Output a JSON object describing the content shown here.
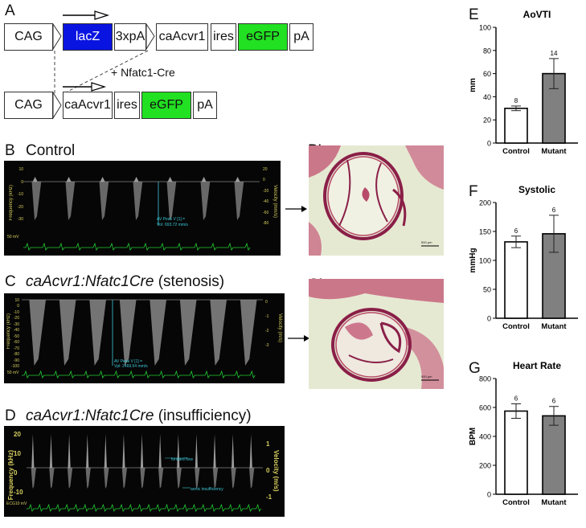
{
  "panels": {
    "A": "A",
    "B": "B",
    "C": "C",
    "D": "D",
    "B_prime": "B’",
    "C_prime": "C’",
    "E": "E",
    "F": "F",
    "G": "G"
  },
  "construct": {
    "top": [
      "CAG",
      "lacZ",
      "3xpA",
      "caAcvr1",
      "ires",
      "eGFP",
      "pA"
    ],
    "bottom": [
      "CAG",
      "caAcvr1",
      "ires",
      "eGFP",
      "pA"
    ],
    "cre_label": "+ Nfatc1-Cre",
    "colors": {
      "lacZ": "#0a14e0",
      "eGFP": "#22e022"
    }
  },
  "titles": {
    "B": "Control",
    "C_italic": "caAcvr1:Nfatc1Cre",
    "C_rest": " (stenosis)",
    "D_italic": "caAcvr1:Nfatc1Cre",
    "D_rest": " (insufficiency)"
  },
  "ultrasound": {
    "B_annot1": "AV Peak V [1] =",
    "B_annot2": "VoI: 693.72 mm/s",
    "C_annot1": "AV Peak V [1] =",
    "C_annot2": "Vpl: 2469.54 mm/s",
    "D_annot1": "forward flow",
    "D_annot2": "aortic insufficiency",
    "D_ecg": "ECG10 mV",
    "B_ecg": "50 mV",
    "C_ecg": "50 mV",
    "freq_label": "Frequency (kHz)",
    "vel_label": "Velocity (m/s)",
    "velocity_ms": "Velocity (mm/s)",
    "B_ticks_left": [
      "10",
      "0",
      "-10",
      "-20",
      "-30"
    ],
    "B_ticks_right": [
      "20",
      "0",
      "-20",
      "-40",
      "-60",
      "-80"
    ],
    "C_ticks_left": [
      "10",
      "0",
      "-10",
      "-20",
      "-30",
      "-40",
      "-50",
      "-60",
      "-70",
      "-80",
      "-90",
      "-100"
    ],
    "C_ticks_right": [
      "0",
      "-1",
      "-2",
      "-3"
    ],
    "D_ticks_left": [
      "20",
      "10",
      "0",
      "-10"
    ],
    "D_ticks_right": [
      "1",
      "0",
      "-1"
    ]
  },
  "histology": {
    "B_scale": "500 μm",
    "C_scale": "500 μm"
  },
  "chart_data": [
    {
      "type": "bar",
      "title": "AoVTI",
      "categories": [
        "Control",
        "Mutant"
      ],
      "values": [
        30,
        60
      ],
      "errors": [
        2,
        13
      ],
      "n_labels": [
        "8",
        "14"
      ],
      "ylabel": "mm",
      "ylim": [
        0,
        100
      ],
      "yticks": [
        0,
        20,
        40,
        60,
        80,
        100
      ],
      "colors": [
        "#ffffff",
        "#808080"
      ]
    },
    {
      "type": "bar",
      "title": "Systolic",
      "categories": [
        "Control",
        "Mutant"
      ],
      "values": [
        132,
        146
      ],
      "errors": [
        10,
        32
      ],
      "n_labels": [
        "6",
        "6"
      ],
      "ylabel": "mmHg",
      "ylim": [
        0,
        200
      ],
      "yticks": [
        0,
        50,
        100,
        150,
        200
      ],
      "colors": [
        "#ffffff",
        "#808080"
      ]
    },
    {
      "type": "bar",
      "title": "Heart Rate",
      "categories": [
        "Control",
        "Mutant"
      ],
      "values": [
        575,
        542
      ],
      "errors": [
        50,
        65
      ],
      "n_labels": [
        "6",
        "6"
      ],
      "ylabel": "BPM",
      "ylim": [
        0,
        800
      ],
      "yticks": [
        0,
        200,
        400,
        600,
        800
      ],
      "colors": [
        "#ffffff",
        "#808080"
      ]
    }
  ]
}
